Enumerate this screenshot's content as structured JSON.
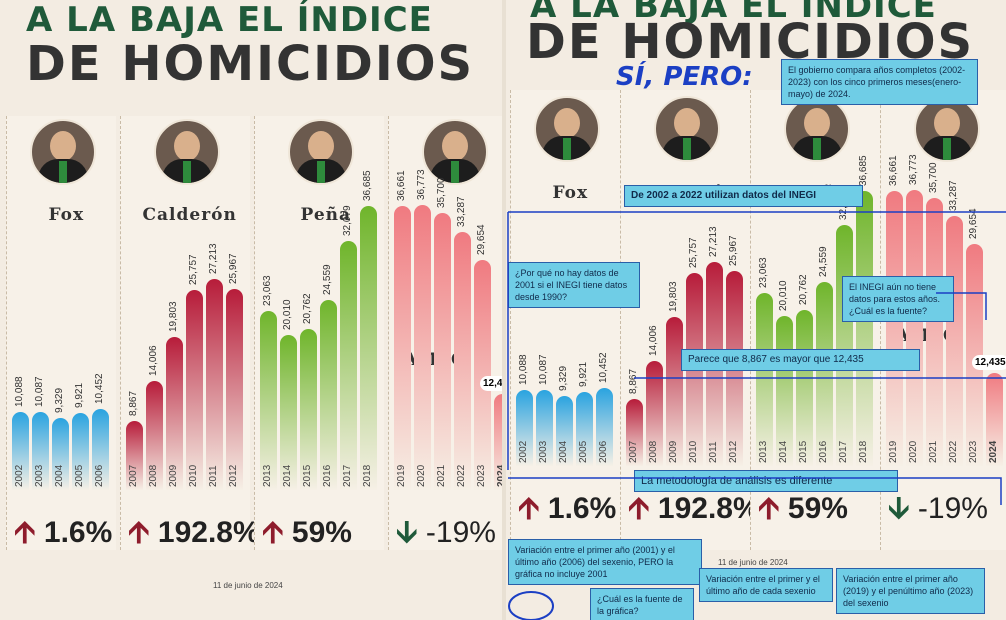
{
  "title_line1": "A LA BAJA EL ÍNDICE",
  "title_line2": "DE HOMICIDIOS",
  "date": "11 de junio de 2024",
  "presidents": [
    "Fox",
    "Calderón",
    "Peña",
    "AMLO"
  ],
  "changes": [
    "1.6%",
    "192.8%",
    "59%",
    "-19%"
  ],
  "highlight_2024": "12,435",
  "annotations": {
    "si_pero": "SÍ, PERO:",
    "n1": "El gobierno compara años completos (2002-2023) con los cinco primeros meses(enero-mayo) de 2024.",
    "n2": "De 2002 a 2022 utilizan datos del INEGI",
    "n3": "¿Por qué no hay datos de 2001 si el INEGI tiene datos desde 1990?",
    "n4": "El INEGI aún no tiene datos para estos años. ¿Cuál es la fuente?",
    "n5": "Parece que 8,867 es mayor que 12,435",
    "n6": "La metodología de análisis es diferente",
    "n7": "Variación entre el primer año (2001) y el último año (2006) del sexenio, PERO la gráfica no incluye 2001",
    "n8": "Variación entre el primer y el último año de cada sexenio",
    "n9": "Variación entre el primer año (2019) y el penúltimo año (2023) del sexenio",
    "n10": "¿Cuál es la fuente de la gráfica?"
  },
  "chart_data": {
    "type": "bar",
    "title": "A LA BAJA EL ÍNDICE DE HOMICIDIOS",
    "categories": [
      "2002",
      "2003",
      "2004",
      "2005",
      "2006",
      "2007",
      "2008",
      "2009",
      "2010",
      "2011",
      "2012",
      "2013",
      "2014",
      "2015",
      "2016",
      "2017",
      "2018",
      "2019",
      "2020",
      "2021",
      "2022",
      "2023",
      "2024"
    ],
    "values": [
      10088,
      10087,
      9329,
      9921,
      10452,
      8867,
      14006,
      19803,
      25757,
      27213,
      25967,
      23063,
      20010,
      20762,
      24559,
      32079,
      36685,
      36661,
      36773,
      35700,
      33287,
      29654,
      12435
    ],
    "labels": [
      "10,088",
      "10,087",
      "9,329",
      "9,921",
      "10,452",
      "8,867",
      "14,006",
      "19,803",
      "25,757",
      "27,213",
      "25,967",
      "23,063",
      "20,010",
      "20,762",
      "24,559",
      "32,079",
      "36,685",
      "36,661",
      "36,773",
      "35,700",
      "33,287",
      "29,654",
      "12,435"
    ],
    "groups": [
      {
        "name": "Fox",
        "years": [
          "2002",
          "2003",
          "2004",
          "2005",
          "2006"
        ],
        "change": "1.6%",
        "color": "#2aa3e0"
      },
      {
        "name": "Calderón",
        "years": [
          "2007",
          "2008",
          "2009",
          "2010",
          "2011",
          "2012"
        ],
        "change": "192.8%",
        "color": "#b71c3a"
      },
      {
        "name": "Peña",
        "years": [
          "2013",
          "2014",
          "2015",
          "2016",
          "2017",
          "2018"
        ],
        "change": "59%",
        "color": "#6fb52b"
      },
      {
        "name": "AMLO",
        "years": [
          "2019",
          "2020",
          "2021",
          "2022",
          "2023",
          "2024"
        ],
        "change": "-19%",
        "color": "#f07a80"
      }
    ]
  }
}
